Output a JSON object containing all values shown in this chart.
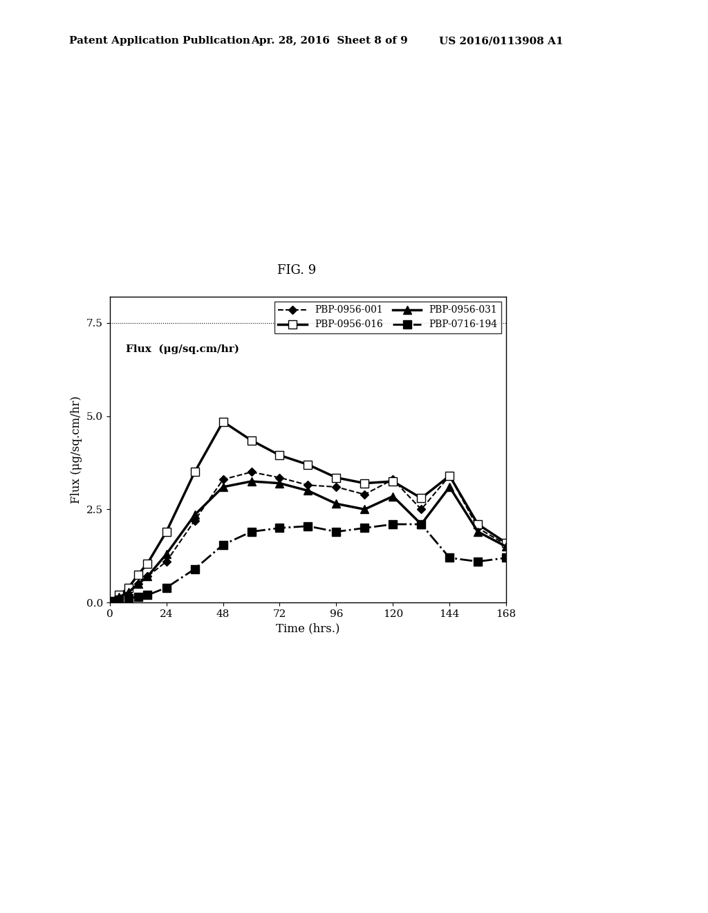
{
  "title": "FIG. 9",
  "xlabel": "Time (hrs.)",
  "ylabel": "Flux (μg/sq.cm/hr)",
  "annotation": "Flux  (μg/sq.cm/hr)",
  "xlim": [
    0,
    168
  ],
  "ylim": [
    0.0,
    8.2
  ],
  "yticks": [
    0.0,
    2.5,
    5.0,
    7.5
  ],
  "xticks": [
    0,
    24,
    48,
    72,
    96,
    120,
    144,
    168
  ],
  "hline_y": 7.5,
  "series": [
    {
      "label": "PBP-0956-001",
      "x": [
        0,
        4,
        8,
        12,
        16,
        24,
        36,
        48,
        60,
        72,
        84,
        96,
        108,
        120,
        132,
        144,
        156,
        168
      ],
      "y": [
        0.05,
        0.18,
        0.3,
        0.5,
        0.7,
        1.1,
        2.2,
        3.3,
        3.5,
        3.35,
        3.15,
        3.1,
        2.9,
        3.3,
        2.5,
        3.4,
        2.0,
        1.55
      ],
      "linestyle": "--",
      "linewidth": 1.5,
      "marker": "D",
      "markersize": 6,
      "markerfacecolor": "black",
      "color": "black"
    },
    {
      "label": "PBP-0956-016",
      "x": [
        0,
        4,
        8,
        12,
        16,
        24,
        36,
        48,
        60,
        72,
        84,
        96,
        108,
        120,
        132,
        144,
        156,
        168
      ],
      "y": [
        0.05,
        0.2,
        0.4,
        0.75,
        1.05,
        1.9,
        3.5,
        4.85,
        4.35,
        3.95,
        3.7,
        3.35,
        3.2,
        3.25,
        2.8,
        3.4,
        2.1,
        1.6
      ],
      "linestyle": "-",
      "linewidth": 2.5,
      "marker": "s",
      "markersize": 8,
      "markerfacecolor": "white",
      "color": "black"
    },
    {
      "label": "PBP-0956-031",
      "x": [
        0,
        4,
        8,
        12,
        16,
        24,
        36,
        48,
        60,
        72,
        84,
        96,
        108,
        120,
        132,
        144,
        156,
        168
      ],
      "y": [
        0.05,
        0.15,
        0.28,
        0.5,
        0.7,
        1.3,
        2.35,
        3.1,
        3.25,
        3.2,
        3.0,
        2.65,
        2.5,
        2.85,
        2.1,
        3.1,
        1.9,
        1.5
      ],
      "linestyle": "-",
      "linewidth": 2.5,
      "marker": "^",
      "markersize": 8,
      "markerfacecolor": "black",
      "color": "black"
    },
    {
      "label": "PBP-0716-194",
      "x": [
        0,
        4,
        8,
        12,
        16,
        24,
        36,
        48,
        60,
        72,
        84,
        96,
        108,
        120,
        132,
        144,
        156,
        168
      ],
      "y": [
        0.02,
        0.08,
        0.12,
        0.15,
        0.2,
        0.4,
        0.9,
        1.55,
        1.9,
        2.0,
        2.05,
        1.9,
        2.0,
        2.1,
        2.1,
        1.2,
        1.1,
        1.2
      ],
      "linestyle": "-.",
      "linewidth": 2.0,
      "marker": "s",
      "markersize": 8,
      "markerfacecolor": "black",
      "color": "black"
    }
  ],
  "background_color": "#ffffff",
  "plot_bg_color": "#ffffff",
  "fig_width": 10.24,
  "fig_height": 13.2,
  "header_text1": "Patent Application Publication",
  "header_text2": "Apr. 28, 2016  Sheet 8 of 9",
  "header_text3": "US 2016/0113908 A1"
}
